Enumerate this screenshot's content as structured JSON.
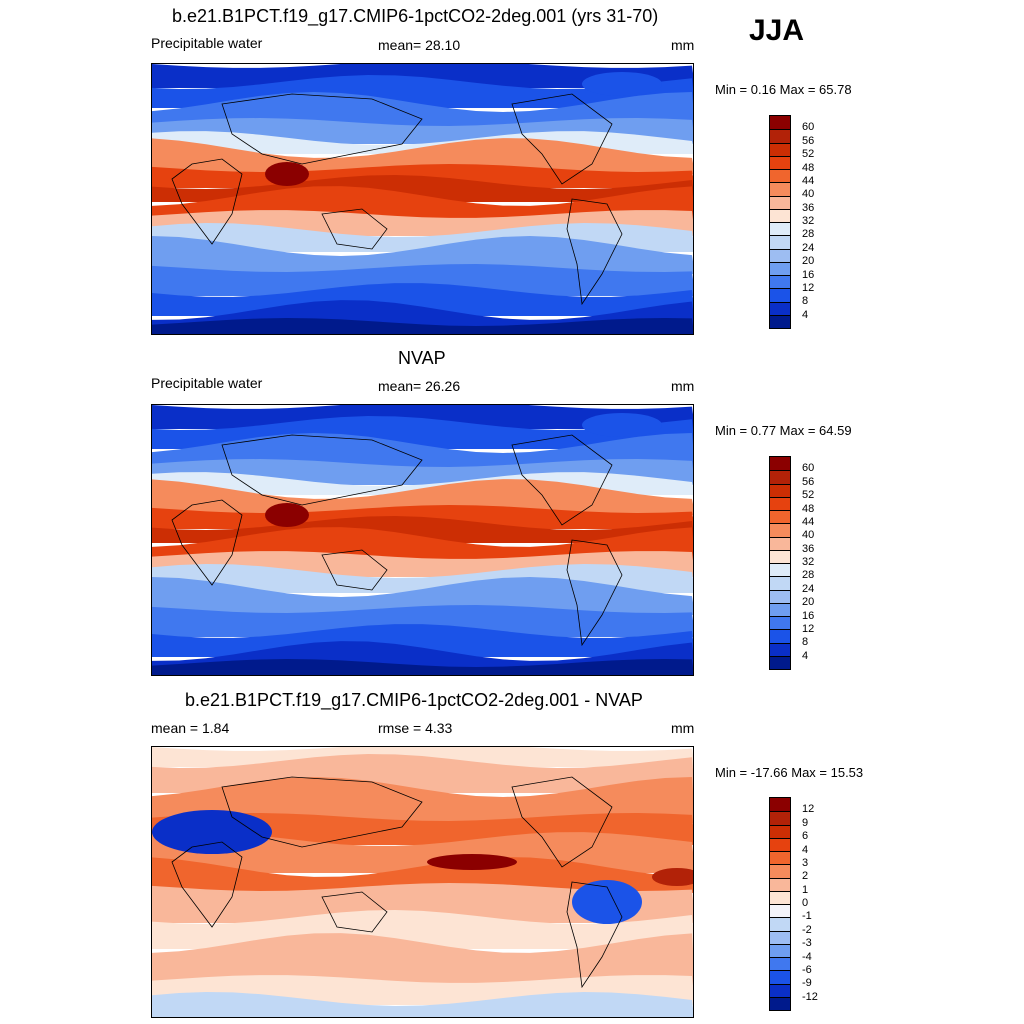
{
  "season": "JJA",
  "panels": [
    {
      "title": "b.e21.B1PCT.f19_g17.CMIP6-1pctCO2-2deg.001 (yrs 31-70)",
      "left": "Precipitable water",
      "center": "mean=  28.10",
      "units": "mm",
      "minmax": "Min =   0.16 Max =  65.78",
      "kind": "field",
      "colorbar": {
        "labels": [
          "60",
          "56",
          "52",
          "48",
          "44",
          "40",
          "36",
          "32",
          "28",
          "24",
          "20",
          "16",
          "12",
          "8",
          "4"
        ],
        "colors": [
          "#8b0000",
          "#b22208",
          "#cc2e04",
          "#e6420f",
          "#f0652d",
          "#f58b5c",
          "#f9b79a",
          "#fde4d4",
          "#dfecf9",
          "#c1d8f5",
          "#9dbdf2",
          "#6f9ef0",
          "#4078ef",
          "#1b53e8",
          "#0a2fc8",
          "#001a8c"
        ]
      }
    },
    {
      "title": "NVAP",
      "left": "Precipitable water",
      "center": "mean=  26.26",
      "units": "mm",
      "minmax": "Min =   0.77 Max =  64.59",
      "kind": "field",
      "colorbar": {
        "labels": [
          "60",
          "56",
          "52",
          "48",
          "44",
          "40",
          "36",
          "32",
          "28",
          "24",
          "20",
          "16",
          "12",
          "8",
          "4"
        ],
        "colors": [
          "#8b0000",
          "#b22208",
          "#cc2e04",
          "#e6420f",
          "#f0652d",
          "#f58b5c",
          "#f9b79a",
          "#fde4d4",
          "#dfecf9",
          "#c1d8f5",
          "#9dbdf2",
          "#6f9ef0",
          "#4078ef",
          "#1b53e8",
          "#0a2fc8",
          "#001a8c"
        ]
      }
    },
    {
      "title": "b.e21.B1PCT.f19_g17.CMIP6-1pctCO2-2deg.001 - NVAP",
      "left": "mean =   1.84",
      "center": "rmse =   4.33",
      "units": "mm",
      "minmax": "Min = -17.66 Max =  15.53",
      "kind": "diff",
      "colorbar": {
        "labels": [
          "12",
          "9",
          "6",
          "4",
          "3",
          "2",
          "1",
          "0",
          "-1",
          "-2",
          "-3",
          "-4",
          "-6",
          "-9",
          "-12"
        ],
        "colors": [
          "#8b0000",
          "#b22208",
          "#cc2e04",
          "#e6420f",
          "#f0652d",
          "#f58b5c",
          "#f9b79a",
          "#fde4d4",
          "#f4f4fa",
          "#c1d8f5",
          "#9dbdf2",
          "#6f9ef0",
          "#4078ef",
          "#1b53e8",
          "#0a2fc8",
          "#001a8c"
        ]
      }
    }
  ]
}
